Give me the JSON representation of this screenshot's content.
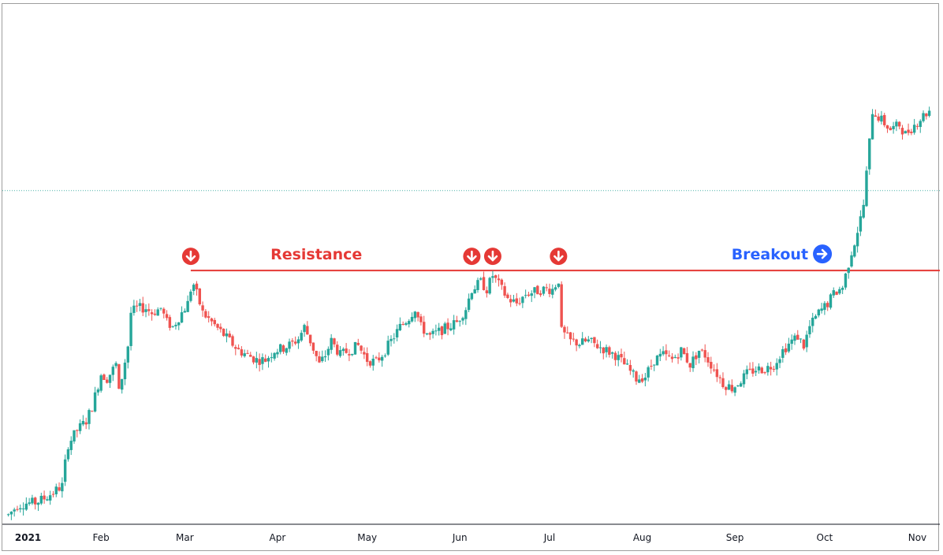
{
  "chart_data": {
    "type": "candlestick",
    "title": "",
    "xlabel": "",
    "ylabel": "",
    "x_ticks": [
      {
        "label": "2021",
        "bold": true,
        "day": 0
      },
      {
        "label": "Feb",
        "bold": false,
        "day": 31
      },
      {
        "label": "Mar",
        "bold": false,
        "day": 59
      },
      {
        "label": "Apr",
        "bold": false,
        "day": 90
      },
      {
        "label": "May",
        "bold": false,
        "day": 120
      },
      {
        "label": "Jun",
        "bold": false,
        "day": 151
      },
      {
        "label": "Jul",
        "bold": false,
        "day": 181
      },
      {
        "label": "Aug",
        "bold": false,
        "day": 212
      },
      {
        "label": "Sep",
        "bold": false,
        "day": 243
      },
      {
        "label": "Oct",
        "bold": false,
        "day": 273
      },
      {
        "label": "Nov",
        "bold": false,
        "day": 304
      }
    ],
    "xlim": [
      -2,
      311
    ],
    "ylim": [
      0,
      100
    ],
    "up_color": "#26a69a",
    "down_color": "#ef5350",
    "resistance": {
      "label": "Resistance",
      "value": 53,
      "start_day": 61,
      "color": "#e53935"
    },
    "breakout": {
      "label": "Breakout",
      "color": "#2962ff",
      "day": 277
    },
    "reference_line": {
      "value": 70,
      "color": "#4fb3a9",
      "style": "dotted"
    },
    "resistance_touch_days": [
      61,
      155,
      162,
      184
    ],
    "price_path": [
      [
        0,
        1
      ],
      [
        3,
        3
      ],
      [
        6,
        3.5
      ],
      [
        9,
        3.6
      ],
      [
        12,
        4.5
      ],
      [
        15,
        5.8
      ],
      [
        18,
        7.2
      ],
      [
        19,
        12
      ],
      [
        20,
        16
      ],
      [
        23,
        19
      ],
      [
        26,
        21
      ],
      [
        28,
        24
      ],
      [
        31,
        31
      ],
      [
        33,
        30
      ],
      [
        36,
        33
      ],
      [
        37,
        27
      ],
      [
        40,
        37
      ],
      [
        41,
        44
      ],
      [
        43,
        45
      ],
      [
        46,
        45
      ],
      [
        48,
        44
      ],
      [
        51,
        45
      ],
      [
        53,
        42
      ],
      [
        55,
        41
      ],
      [
        58,
        44
      ],
      [
        60,
        46
      ],
      [
        61,
        49
      ],
      [
        62,
        50
      ],
      [
        65,
        44
      ],
      [
        68,
        42
      ],
      [
        71,
        40
      ],
      [
        74,
        38
      ],
      [
        77,
        36
      ],
      [
        80,
        35
      ],
      [
        83,
        34
      ],
      [
        86,
        34
      ],
      [
        89,
        36
      ],
      [
        92,
        36.5
      ],
      [
        95,
        37.5
      ],
      [
        97,
        38.5
      ],
      [
        99,
        41
      ],
      [
        101,
        38
      ],
      [
        104,
        33
      ],
      [
        106,
        35
      ],
      [
        108,
        38
      ],
      [
        111,
        35
      ],
      [
        114,
        36
      ],
      [
        117,
        37
      ],
      [
        120,
        34
      ],
      [
        123,
        33.5
      ],
      [
        126,
        36
      ],
      [
        129,
        39
      ],
      [
        131,
        41
      ],
      [
        134,
        43
      ],
      [
        136,
        45
      ],
      [
        138,
        41
      ],
      [
        141,
        39
      ],
      [
        144,
        40
      ],
      [
        147,
        41
      ],
      [
        150,
        42
      ],
      [
        153,
        45
      ],
      [
        155,
        49
      ],
      [
        158,
        50.5
      ],
      [
        160,
        49
      ],
      [
        162,
        52
      ],
      [
        164,
        50
      ],
      [
        167,
        47
      ],
      [
        170,
        46
      ],
      [
        173,
        48
      ],
      [
        176,
        48.5
      ],
      [
        179,
        49
      ],
      [
        182,
        49
      ],
      [
        184,
        51
      ],
      [
        185,
        40
      ],
      [
        188,
        38
      ],
      [
        191,
        37.5
      ],
      [
        194,
        38
      ],
      [
        197,
        37
      ],
      [
        200,
        36
      ],
      [
        203,
        35
      ],
      [
        206,
        33
      ],
      [
        208,
        31.5
      ],
      [
        210,
        30
      ],
      [
        213,
        30.5
      ],
      [
        216,
        34
      ],
      [
        219,
        35
      ],
      [
        222,
        34
      ],
      [
        225,
        36
      ],
      [
        228,
        33
      ],
      [
        231,
        36
      ],
      [
        233,
        35
      ],
      [
        236,
        32
      ],
      [
        239,
        29
      ],
      [
        242,
        28
      ],
      [
        244,
        29
      ],
      [
        247,
        31
      ],
      [
        250,
        32
      ],
      [
        253,
        32
      ],
      [
        256,
        33
      ],
      [
        259,
        36
      ],
      [
        262,
        38
      ],
      [
        264,
        39
      ],
      [
        266,
        37
      ],
      [
        268,
        41
      ],
      [
        271,
        44
      ],
      [
        274,
        46
      ],
      [
        276,
        48
      ],
      [
        278,
        49
      ],
      [
        279,
        49.5
      ],
      [
        280,
        52
      ],
      [
        282,
        57
      ],
      [
        283,
        59
      ],
      [
        285,
        64
      ],
      [
        286,
        67
      ],
      [
        289,
        87
      ],
      [
        292,
        85
      ],
      [
        295,
        83
      ],
      [
        298,
        84
      ],
      [
        300,
        82
      ],
      [
        303,
        84
      ],
      [
        306,
        86
      ],
      [
        308,
        87
      ]
    ]
  }
}
